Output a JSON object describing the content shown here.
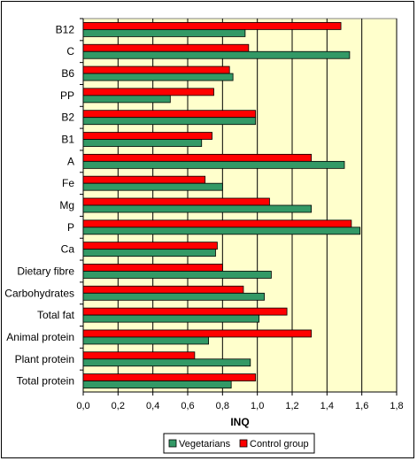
{
  "chart_data": {
    "type": "bar",
    "orientation": "horizontal",
    "categories": [
      "B12",
      "C",
      "B6",
      "PP",
      "B2",
      "B1",
      "A",
      "Fe",
      "Mg",
      "P",
      "Ca",
      "Dietary fibre",
      "Carbohydrates",
      "Total fat",
      "Animal protein",
      "Plant protein",
      "Total protein"
    ],
    "series": [
      {
        "name": "Control group",
        "color": "#ff0000",
        "values": [
          1.48,
          0.95,
          0.84,
          0.75,
          0.99,
          0.74,
          1.31,
          0.7,
          1.07,
          1.54,
          0.77,
          0.8,
          0.92,
          1.17,
          1.31,
          0.64,
          0.99
        ]
      },
      {
        "name": "Vegetarians",
        "color": "#339966",
        "values": [
          0.93,
          1.53,
          0.86,
          0.5,
          0.99,
          0.68,
          1.5,
          0.8,
          1.31,
          1.59,
          0.76,
          1.08,
          1.04,
          1.01,
          0.72,
          0.96,
          0.85
        ]
      }
    ],
    "xlabel": "INQ",
    "ylabel": "",
    "xlim": [
      0,
      1.8
    ],
    "xticks": [
      "0,0",
      "0,2",
      "0,4",
      "0,6",
      "0,8",
      "1,0",
      "1,2",
      "1,4",
      "1,6",
      "1,8"
    ],
    "grid": "vertical lines at 0.2 intervals",
    "plot_background": "#ffffcc",
    "legend_position": "bottom",
    "legend": [
      "Vegetarians",
      "Control group"
    ]
  }
}
